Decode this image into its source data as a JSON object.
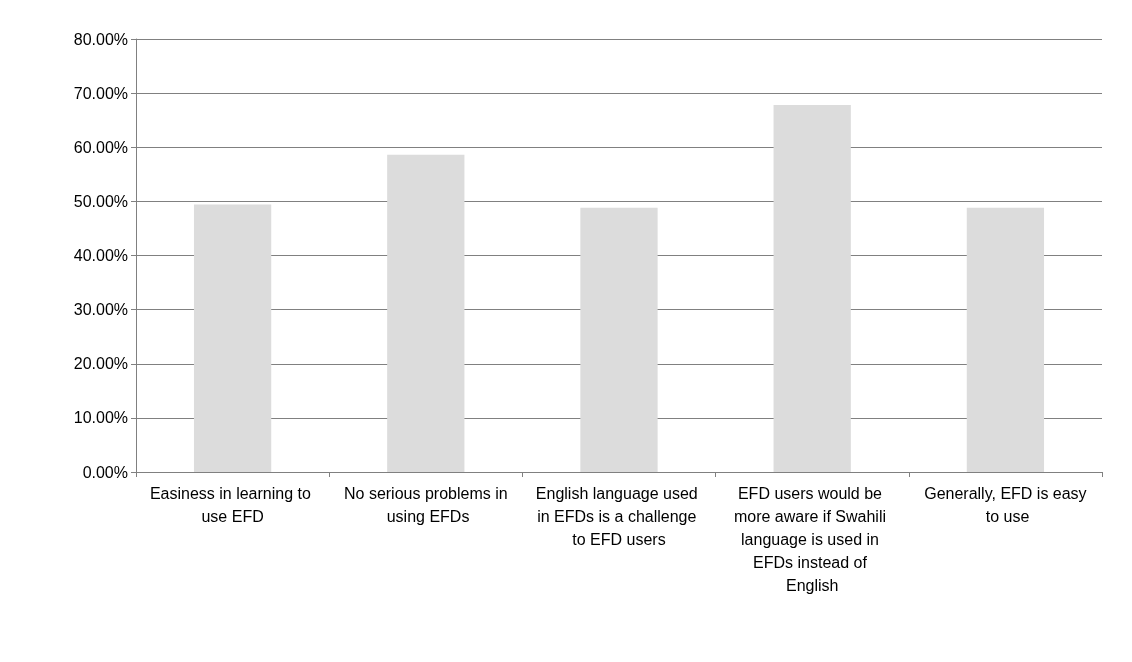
{
  "chart_data": {
    "type": "bar",
    "categories": [
      "Easiness in learning to use EFD",
      "No serious problems in using EFDs",
      "English language used in EFDs is a challenge to EFD users",
      "EFD users would be more aware if Swahili language is used in EFDs instead of English",
      "Generally, EFD is easy to use"
    ],
    "values": [
      49.4,
      58.6,
      48.8,
      67.8,
      48.8
    ],
    "color": "#dcdcdc",
    "ylim": [
      0,
      80
    ],
    "yticks": [
      {
        "value": 0,
        "label": "0.00%"
      },
      {
        "value": 10,
        "label": "10.00%"
      },
      {
        "value": 20,
        "label": "20.00%"
      },
      {
        "value": 30,
        "label": "30.00%"
      },
      {
        "value": 40,
        "label": "40.00%"
      },
      {
        "value": 50,
        "label": "50.00%"
      },
      {
        "value": 60,
        "label": "60.00%"
      },
      {
        "value": 70,
        "label": "70.00%"
      },
      {
        "value": 80,
        "label": "80.00%"
      }
    ],
    "grid": true
  }
}
